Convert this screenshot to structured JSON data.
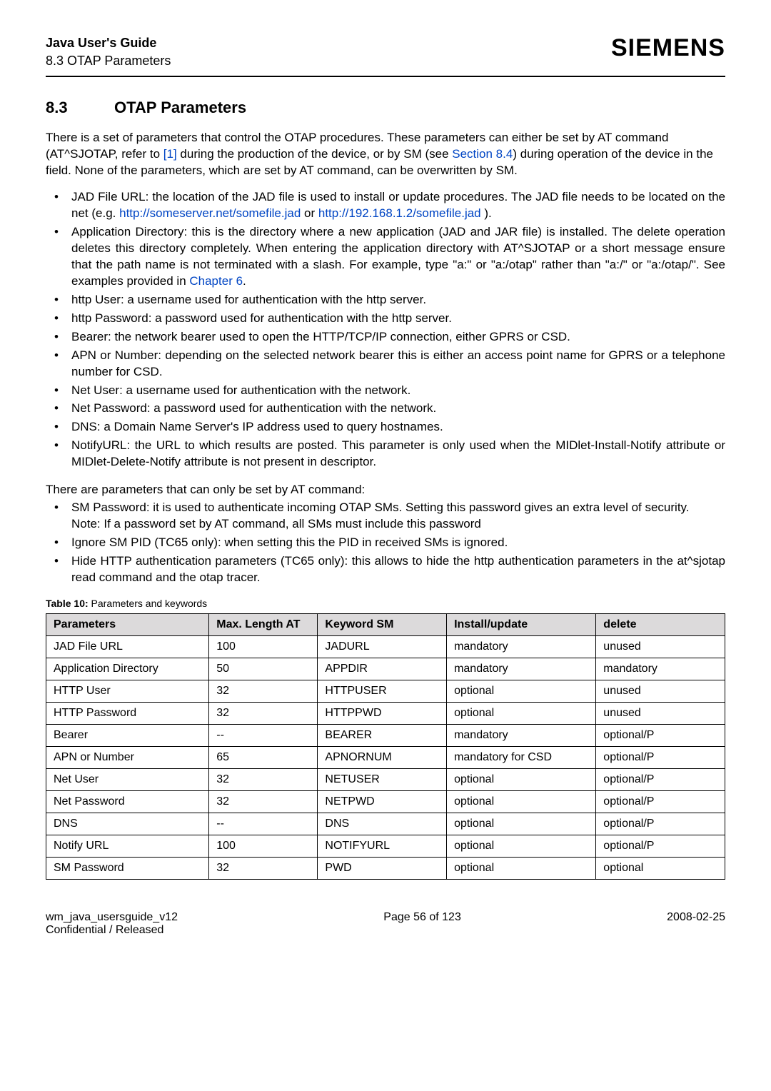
{
  "header": {
    "title": "Java User's Guide",
    "subtitle": "8.3 OTAP Parameters",
    "logo": "SIEMENS"
  },
  "section": {
    "num": "8.3",
    "title": "OTAP Parameters"
  },
  "intro": {
    "t1": "There is a set of parameters that control the OTAP procedures. These parameters can either be set by AT command (AT^SJOTAP, refer to ",
    "ref": "[1]",
    "t2": " during the production of the device, or by SM (see ",
    "sec": "Section 8.4",
    "t3": ") during operation of the device in the field. None of the parameters, which are set by AT command, can be overwritten by SM."
  },
  "bullets1": [
    {
      "a": "JAD File URL: the location of the JAD file is used to install or update procedures. The JAD file needs to be located on the net (e.g. ",
      "l1": "http://someserver.net/somefile.jad",
      "b": " or ",
      "l2": "http://192.168.1.2/somefile.jad",
      "c": " )."
    },
    {
      "a": "Application Directory: this is the directory where a new application (JAD and JAR file) is installed. The delete operation deletes this directory completely. When entering the application directory with AT^SJOTAP or a short message ensure that the path name is not terminated with a slash. For example, type \"a:\" or \"a:/otap\" rather than \"a:/\" or \"a:/otap/\". See examples provided in ",
      "l1": "Chapter 6",
      "c": "."
    },
    {
      "a": "http User: a username used for authentication with the http server."
    },
    {
      "a": "http Password: a password used for authentication with the http server."
    },
    {
      "a": "Bearer: the network bearer used to open the HTTP/TCP/IP connection, either GPRS or CSD."
    },
    {
      "a": "APN or Number: depending on the selected network bearer this is either an access point name for GPRS or a telephone number for CSD."
    },
    {
      "a": "Net User: a username used for authentication with the network."
    },
    {
      "a": "Net Password: a password used for authentication with the network."
    },
    {
      "a": "DNS: a Domain Name Server's IP address used to query hostnames."
    },
    {
      "a": "NotifyURL: the URL to which results are posted. This parameter is only used when the MIDlet-Install-Notify attribute or MIDlet-Delete-Notify attribute is not present in descriptor."
    }
  ],
  "para2": "There are parameters that can only be set by AT command:",
  "bullets2": [
    {
      "a": "SM Password: it is used to authenticate incoming OTAP SMs. Setting this password gives an extra level of security.",
      "note": "Note: If a password set by AT command, all SMs must include this password"
    },
    {
      "a": "Ignore SM PID (TC65 only): when setting this the PID in received SMs is ignored."
    },
    {
      "a": "Hide HTTP authentication parameters (TC65 only): this allows to hide the http authentication parameters in the at^sjotap read command and the otap tracer."
    }
  ],
  "table": {
    "caption_b": "Table 10:",
    "caption_t": "  Parameters and keywords",
    "columns": [
      "Parameters",
      "Max. Length AT",
      "Keyword SM",
      "Install/update",
      "delete"
    ],
    "col_widths": [
      "24%",
      "16%",
      "19%",
      "22%",
      "19%"
    ],
    "rows": [
      [
        "JAD File URL",
        "100",
        "JADURL",
        "mandatory",
        "unused"
      ],
      [
        "Application Directory",
        "50",
        "APPDIR",
        "mandatory",
        "mandatory"
      ],
      [
        "HTTP User",
        "32",
        "HTTPUSER",
        "optional",
        "unused"
      ],
      [
        "HTTP Password",
        "32",
        "HTTPPWD",
        "optional",
        "unused"
      ],
      [
        "Bearer",
        "--",
        "BEARER",
        "mandatory",
        "optional/P"
      ],
      [
        "APN or Number",
        "65",
        "APNORNUM",
        "mandatory for CSD",
        "optional/P"
      ],
      [
        "Net User",
        "32",
        "NETUSER",
        "optional",
        "optional/P"
      ],
      [
        "Net Password",
        "32",
        "NETPWD",
        "optional",
        "optional/P"
      ],
      [
        "DNS",
        "--",
        "DNS",
        "optional",
        "optional/P"
      ],
      [
        "Notify URL",
        "100",
        "NOTIFYURL",
        "optional",
        "optional/P"
      ],
      [
        "SM Password",
        "32",
        "PWD",
        "optional",
        "optional"
      ]
    ]
  },
  "footer": {
    "left1": "wm_java_usersguide_v12",
    "left2": "Confidential / Released",
    "mid": "Page 56 of 123",
    "right": "2008-02-25"
  }
}
